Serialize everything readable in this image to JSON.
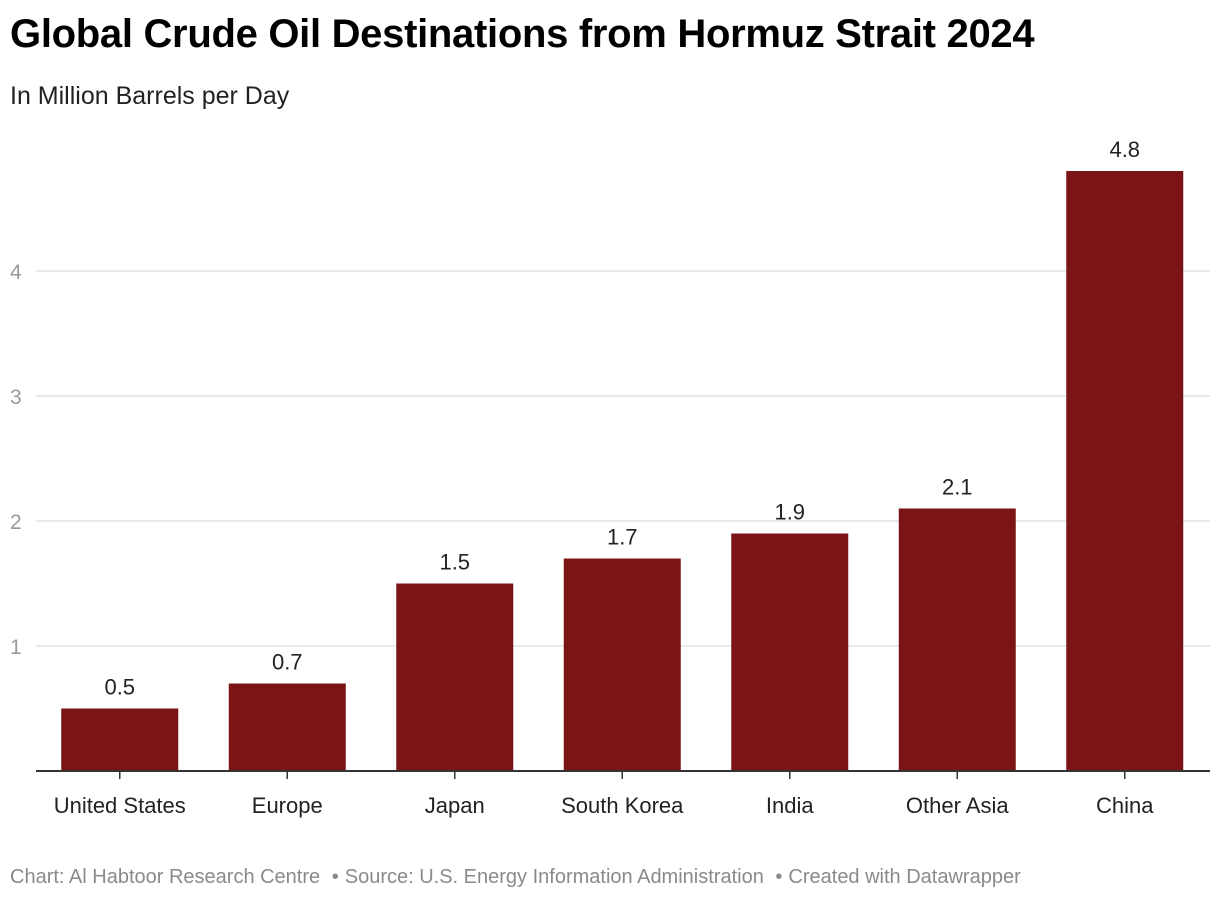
{
  "chart_data": {
    "type": "bar",
    "title": "Global Crude Oil Destinations from Hormuz Strait 2024",
    "subtitle": "In Million Barrels per Day",
    "xlabel": "",
    "ylabel": "",
    "categories": [
      "United States",
      "Europe",
      "Japan",
      "South Korea",
      "India",
      "Other Asia",
      "China"
    ],
    "values": [
      0.5,
      0.7,
      1.5,
      1.7,
      1.9,
      2.1,
      4.8
    ],
    "value_labels": [
      "0.5",
      "0.7",
      "1.5",
      "1.7",
      "1.9",
      "2.1",
      "4.8"
    ],
    "yticks": [
      1,
      2,
      3,
      4
    ],
    "ytick_labels": [
      "1",
      "2",
      "3",
      "4"
    ],
    "ylim": [
      0,
      5
    ],
    "grid": true,
    "bar_color": "#7b1416"
  },
  "footer": {
    "chart_credit": "Chart: Al Habtoor Research Centre",
    "source": "Source: U.S. Energy Information Administration",
    "created_with": "Created with Datawrapper",
    "separator": "•"
  }
}
